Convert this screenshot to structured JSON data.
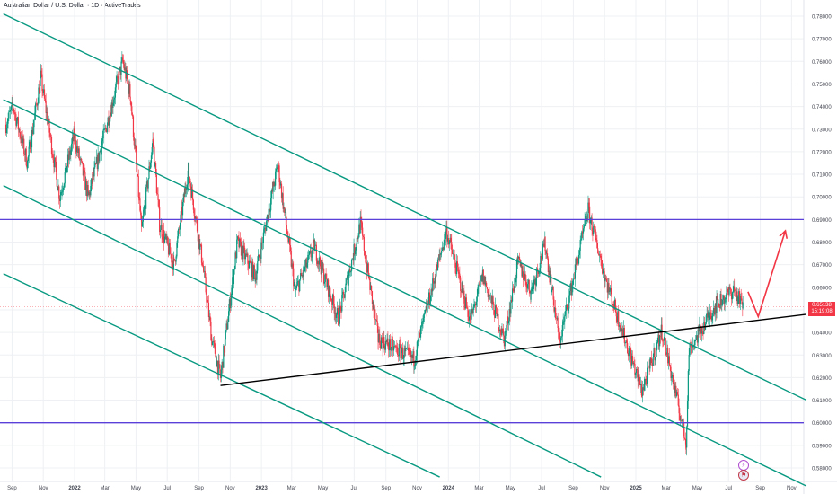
{
  "title": "Australian Dollar / U.S. Dollar · 1D · ActiveTrades",
  "current_price": {
    "value": "0.65138",
    "countdown": "15:19:08",
    "color": "#f23645"
  },
  "colors": {
    "up": "#089981",
    "down": "#f23645",
    "channel": "#089981",
    "horizontal": "#5b3fd9",
    "trendline": "#000000",
    "arrow": "#f23645",
    "grid": "#eef0f3",
    "axis_text": "#434651"
  },
  "event_icons": [
    "lightning-icon",
    "flag-icon"
  ],
  "chart_data": {
    "type": "candlestick",
    "ylim": [
      0.5755,
      0.7815
    ],
    "y_ticks": [
      "0.78000",
      "0.77000",
      "0.76000",
      "0.75000",
      "0.74000",
      "0.73000",
      "0.72000",
      "0.71000",
      "0.70000",
      "0.69000",
      "0.68000",
      "0.67000",
      "0.66000",
      "0.65000",
      "0.64000",
      "0.63000",
      "0.62000",
      "0.61000",
      "0.60000",
      "0.59000",
      "0.58000"
    ],
    "x_ticks": [
      "Sep",
      "Nov",
      "2022",
      "Mar",
      "May",
      "Jul",
      "Sep",
      "Nov",
      "2023",
      "Mar",
      "May",
      "Jul",
      "Sep",
      "Nov",
      "2024",
      "Mar",
      "May",
      "Jul",
      "Sep",
      "Nov",
      "2025",
      "Mar",
      "May",
      "Jul",
      "Sep",
      "Nov"
    ],
    "price_path": [
      [
        "2021-08-20",
        0.732
      ],
      [
        "2021-09-03",
        0.74
      ],
      [
        "2021-09-20",
        0.725
      ],
      [
        "2021-10-01",
        0.715
      ],
      [
        "2021-10-27",
        0.753
      ],
      [
        "2021-11-10",
        0.733
      ],
      [
        "2021-12-03",
        0.7
      ],
      [
        "2021-12-31",
        0.727
      ],
      [
        "2022-01-28",
        0.7
      ],
      [
        "2022-02-25",
        0.725
      ],
      [
        "2022-04-05",
        0.76
      ],
      [
        "2022-04-20",
        0.745
      ],
      [
        "2022-05-12",
        0.685
      ],
      [
        "2022-06-03",
        0.725
      ],
      [
        "2022-06-16",
        0.688
      ],
      [
        "2022-07-14",
        0.67
      ],
      [
        "2022-08-11",
        0.712
      ],
      [
        "2022-09-07",
        0.672
      ],
      [
        "2022-09-26",
        0.637
      ],
      [
        "2022-10-13",
        0.62
      ],
      [
        "2022-11-15",
        0.68
      ],
      [
        "2022-12-20",
        0.665
      ],
      [
        "2023-02-02",
        0.714
      ],
      [
        "2023-03-08",
        0.658
      ],
      [
        "2023-04-14",
        0.678
      ],
      [
        "2023-05-31",
        0.646
      ],
      [
        "2023-07-13",
        0.688
      ],
      [
        "2023-08-17",
        0.637
      ],
      [
        "2023-10-26",
        0.628
      ],
      [
        "2023-12-28",
        0.685
      ],
      [
        "2024-02-13",
        0.645
      ],
      [
        "2024-03-08",
        0.665
      ],
      [
        "2024-04-19",
        0.637
      ],
      [
        "2024-05-16",
        0.671
      ],
      [
        "2024-06-10",
        0.658
      ],
      [
        "2024-07-08",
        0.679
      ],
      [
        "2024-08-05",
        0.636
      ],
      [
        "2024-09-30",
        0.694
      ],
      [
        "2024-11-05",
        0.662
      ],
      [
        "2025-01-13",
        0.614
      ],
      [
        "2025-02-21",
        0.641
      ],
      [
        "2025-04-09",
        0.5915
      ],
      [
        "2025-04-15",
        0.632
      ],
      [
        "2025-06-05",
        0.652
      ],
      [
        "2025-07-11",
        0.659
      ],
      [
        "2025-07-29",
        0.6514
      ]
    ],
    "drawings": {
      "horizontal_lines": [
        0.69,
        0.6
      ],
      "support_trendline": {
        "from": [
          "2022-10-13",
          0.6165
        ],
        "to": [
          "2025-11-30",
          0.648
        ]
      },
      "descending_channel_lines": [
        {
          "from": [
            "2021-08-15",
            0.781
          ],
          "to": [
            "2025-11-30",
            0.61
          ]
        },
        {
          "from": [
            "2021-08-15",
            0.743
          ],
          "to": [
            "2025-11-30",
            0.572
          ]
        },
        {
          "from": [
            "2021-08-15",
            0.705
          ],
          "to": [
            "2024-10-25",
            0.576
          ]
        },
        {
          "from": [
            "2021-08-15",
            0.666
          ],
          "to": [
            "2023-12-15",
            0.576
          ]
        }
      ],
      "projection_arrow": [
        [
          "2025-08-08",
          0.658
        ],
        [
          "2025-08-28",
          0.647
        ],
        [
          "2025-10-20",
          0.685
        ]
      ]
    }
  }
}
